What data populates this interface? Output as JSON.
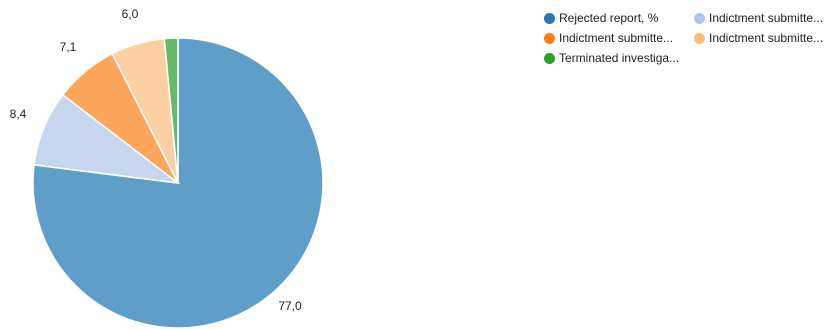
{
  "chart_data": {
    "type": "pie",
    "title": "",
    "start_angle_deg": 0,
    "direction": "clockwise",
    "legend_position": "top-right",
    "slices": [
      {
        "name": "Rejected report, %",
        "value": 77.0,
        "label": "77,0",
        "color": "#5f9ec8",
        "legend_color": "#2a77b4"
      },
      {
        "name": "Indictment submitte...",
        "value": 8.4,
        "label": "8,4",
        "color": "#c6d6ee",
        "legend_color": "#aec7e8"
      },
      {
        "name": "Indictment submitte...",
        "value": 7.1,
        "label": "7,1",
        "color": "#fda55b",
        "legend_color": "#ff7f0e"
      },
      {
        "name": "Indictment submitte...",
        "value": 6.0,
        "label": "6,0",
        "color": "#fdd0a4",
        "legend_color": "#ffbb78"
      },
      {
        "name": "Terminated investiga...",
        "value": 1.5,
        "label": "",
        "color": "#66bb6a",
        "legend_color": "#2ca02c"
      }
    ]
  }
}
